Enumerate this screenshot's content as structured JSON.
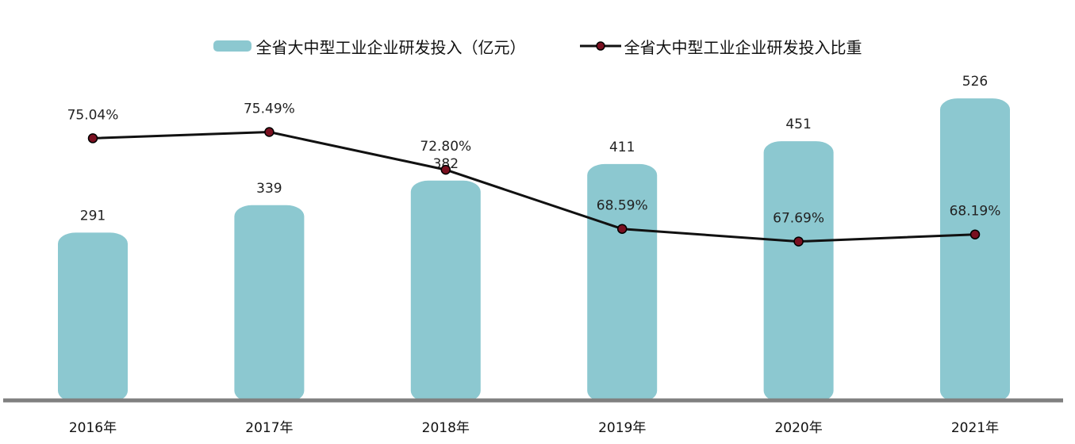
{
  "chart_data": {
    "type": "bar",
    "categories": [
      "2016年",
      "2017年",
      "2018年",
      "2019年",
      "2020年",
      "2021年"
    ],
    "series": [
      {
        "name": "全省大中型工业企业研发投入（亿元）",
        "type": "bar",
        "values": [
          291,
          339,
          382,
          411,
          451,
          526
        ],
        "labels": [
          "291",
          "339",
          "382",
          "411",
          "451",
          "526"
        ],
        "color": "#8CC8D0"
      },
      {
        "name": "全省大中型工业企业研发投入比重",
        "type": "line",
        "values": [
          75.04,
          75.49,
          72.8,
          68.59,
          67.69,
          68.19
        ],
        "labels": [
          "75.04%",
          "75.49%",
          "72.80%",
          "68.59%",
          "67.69%",
          "68.19%"
        ],
        "color": "#111111",
        "marker_color": "#7A1020"
      }
    ],
    "bar_ylim": [
      0,
      540
    ],
    "line_ylim": [
      40,
      78
    ],
    "grid": false,
    "legend_position": "top-center",
    "axis_color": "#7F7F7F"
  }
}
